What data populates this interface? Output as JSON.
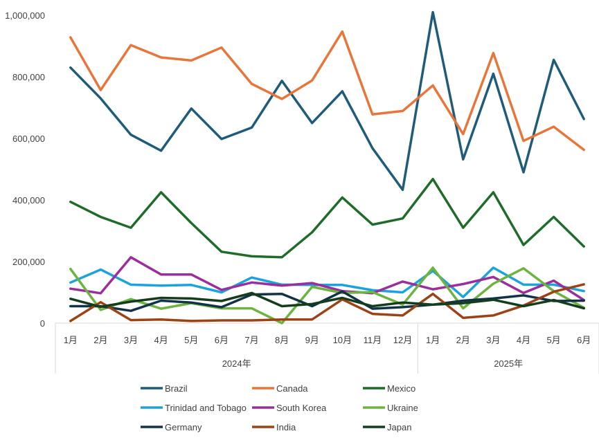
{
  "chart_data": {
    "type": "line",
    "yticks": [
      "1,000,000",
      "800,000",
      "600,000",
      "400,000",
      "200,000",
      "0"
    ],
    "ylim": [
      0,
      1000000
    ],
    "grid": false,
    "legend_position": "bottom",
    "categories": [
      "1月",
      "2月",
      "3月",
      "4月",
      "5月",
      "6月",
      "7月",
      "8月",
      "9月",
      "10月",
      "11月",
      "12月",
      "1月",
      "2月",
      "3月",
      "4月",
      "5月",
      "6月"
    ],
    "years": [
      {
        "label": "2024年",
        "start": 0,
        "count": 12
      },
      {
        "label": "2025年",
        "start": 12,
        "count": 6
      }
    ],
    "series": [
      {
        "name": "Brazil",
        "color": "#1F5C7A",
        "values": [
          830000,
          730000,
          612000,
          560000,
          697000,
          598000,
          635000,
          787000,
          650000,
          753000,
          568000,
          433000,
          1010000,
          532000,
          810000,
          490000,
          855000,
          663000
        ]
      },
      {
        "name": "Canada",
        "color": "#E8753A",
        "values": [
          928000,
          757000,
          903000,
          863000,
          853000,
          895000,
          777000,
          728000,
          788000,
          947000,
          678000,
          689000,
          772000,
          614000,
          877000,
          592000,
          638000,
          563000
        ]
      },
      {
        "name": "Mexico",
        "color": "#1E6B2A",
        "values": [
          394000,
          345000,
          310000,
          425000,
          325000,
          232000,
          217000,
          214000,
          295000,
          408000,
          320000,
          340000,
          468000,
          310000,
          425000,
          254000,
          345000,
          249000
        ]
      },
      {
        "name": "Trinidad and Tobago",
        "color": "#1AA3DC",
        "values": [
          132000,
          174000,
          125000,
          122000,
          124000,
          100000,
          148000,
          125000,
          124000,
          124000,
          107000,
          100000,
          170000,
          85000,
          180000,
          125000,
          125000,
          104000
        ]
      },
      {
        "name": "South Korea",
        "color": "#9B2E9C",
        "values": [
          112000,
          97000,
          214000,
          158000,
          158000,
          108000,
          132000,
          122000,
          130000,
          104000,
          97000,
          135000,
          110000,
          127000,
          150000,
          98000,
          138000,
          75000
        ]
      },
      {
        "name": "Ukraine",
        "color": "#6DB33F",
        "values": [
          176000,
          43000,
          78000,
          47000,
          65000,
          48000,
          48000,
          0,
          118000,
          98000,
          101000,
          60000,
          180000,
          48000,
          128000,
          178000,
          104000,
          50000
        ]
      },
      {
        "name": "Germany",
        "color": "#123247",
        "values": [
          55000,
          55000,
          40000,
          73000,
          67000,
          52000,
          93000,
          95000,
          55000,
          103000,
          47000,
          52000,
          60000,
          73000,
          80000,
          90000,
          72000,
          73000
        ]
      },
      {
        "name": "India",
        "color": "#9C4316",
        "values": [
          7000,
          68000,
          10000,
          12000,
          7000,
          9000,
          9000,
          12000,
          12000,
          77000,
          30000,
          25000,
          95000,
          17000,
          25000,
          57000,
          102000,
          126000
        ]
      },
      {
        "name": "Japan",
        "color": "#133D1C",
        "values": [
          79000,
          53000,
          70000,
          82000,
          80000,
          72000,
          98000,
          55000,
          62000,
          82000,
          55000,
          67000,
          60000,
          65000,
          76000,
          55000,
          75000,
          48000
        ]
      }
    ]
  }
}
